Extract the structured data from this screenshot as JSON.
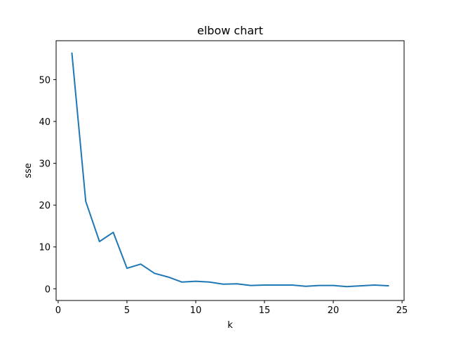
{
  "chart_data": {
    "type": "line",
    "title": "elbow chart",
    "xlabel": "k",
    "ylabel": "sse",
    "xlim": [
      -0.15,
      25.15
    ],
    "ylim": [
      -2.8,
      59.3
    ],
    "xticks": [
      0,
      5,
      10,
      15,
      20,
      25
    ],
    "yticks": [
      0,
      10,
      20,
      30,
      40,
      50
    ],
    "grid": false,
    "series": [
      {
        "color": "#1f77b4",
        "x": [
          1,
          2,
          3,
          4,
          5,
          6,
          7,
          8,
          9,
          10,
          11,
          12,
          13,
          14,
          15,
          16,
          17,
          18,
          19,
          20,
          21,
          22,
          23,
          24
        ],
        "y": [
          56.3,
          20.9,
          11.3,
          13.5,
          4.9,
          5.9,
          3.7,
          2.8,
          1.6,
          1.8,
          1.6,
          1.1,
          1.2,
          0.8,
          0.9,
          0.9,
          0.9,
          0.6,
          0.8,
          0.8,
          0.5,
          0.7,
          0.9,
          0.7
        ]
      }
    ]
  }
}
